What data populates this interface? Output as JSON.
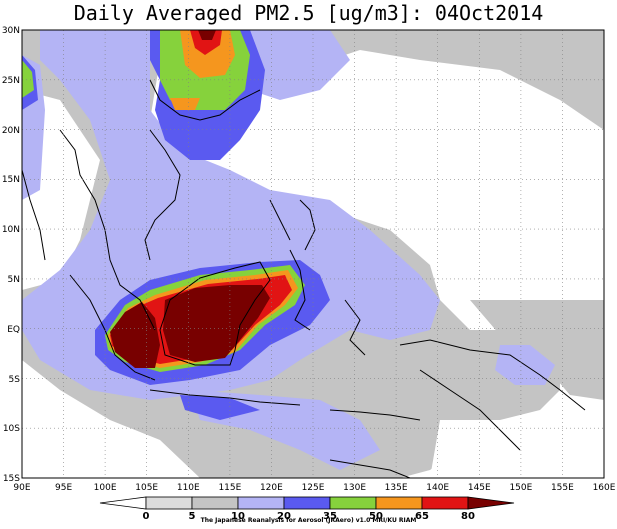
{
  "title": "Daily Averaged PM2.5 [ug/m3]: 04Oct2014",
  "credit": "The Japanese Reanalysis for Aerosol (JRAero) v1.0 MRI/KU RIAM",
  "map": {
    "lon_range": [
      90,
      160
    ],
    "lat_range": [
      -15,
      30
    ],
    "lon_ticks": [
      "90E",
      "95E",
      "100E",
      "105E",
      "110E",
      "115E",
      "120E",
      "125E",
      "130E",
      "135E",
      "140E",
      "145E",
      "150E",
      "155E",
      "160E"
    ],
    "lat_ticks": [
      "30N",
      "25N",
      "20N",
      "15N",
      "10N",
      "5N",
      "EQ",
      "5S",
      "10S",
      "15S"
    ],
    "grid": "dotted"
  },
  "colorbar": {
    "levels": [
      "0",
      "5",
      "10",
      "20",
      "35",
      "50",
      "65",
      "80"
    ],
    "colors": [
      "#ffffff",
      "#dcdcdc",
      "#c4c4c4",
      "#b4b4f5",
      "#5a5af0",
      "#86d23c",
      "#f5961e",
      "#e11414",
      "#780000"
    ]
  }
}
